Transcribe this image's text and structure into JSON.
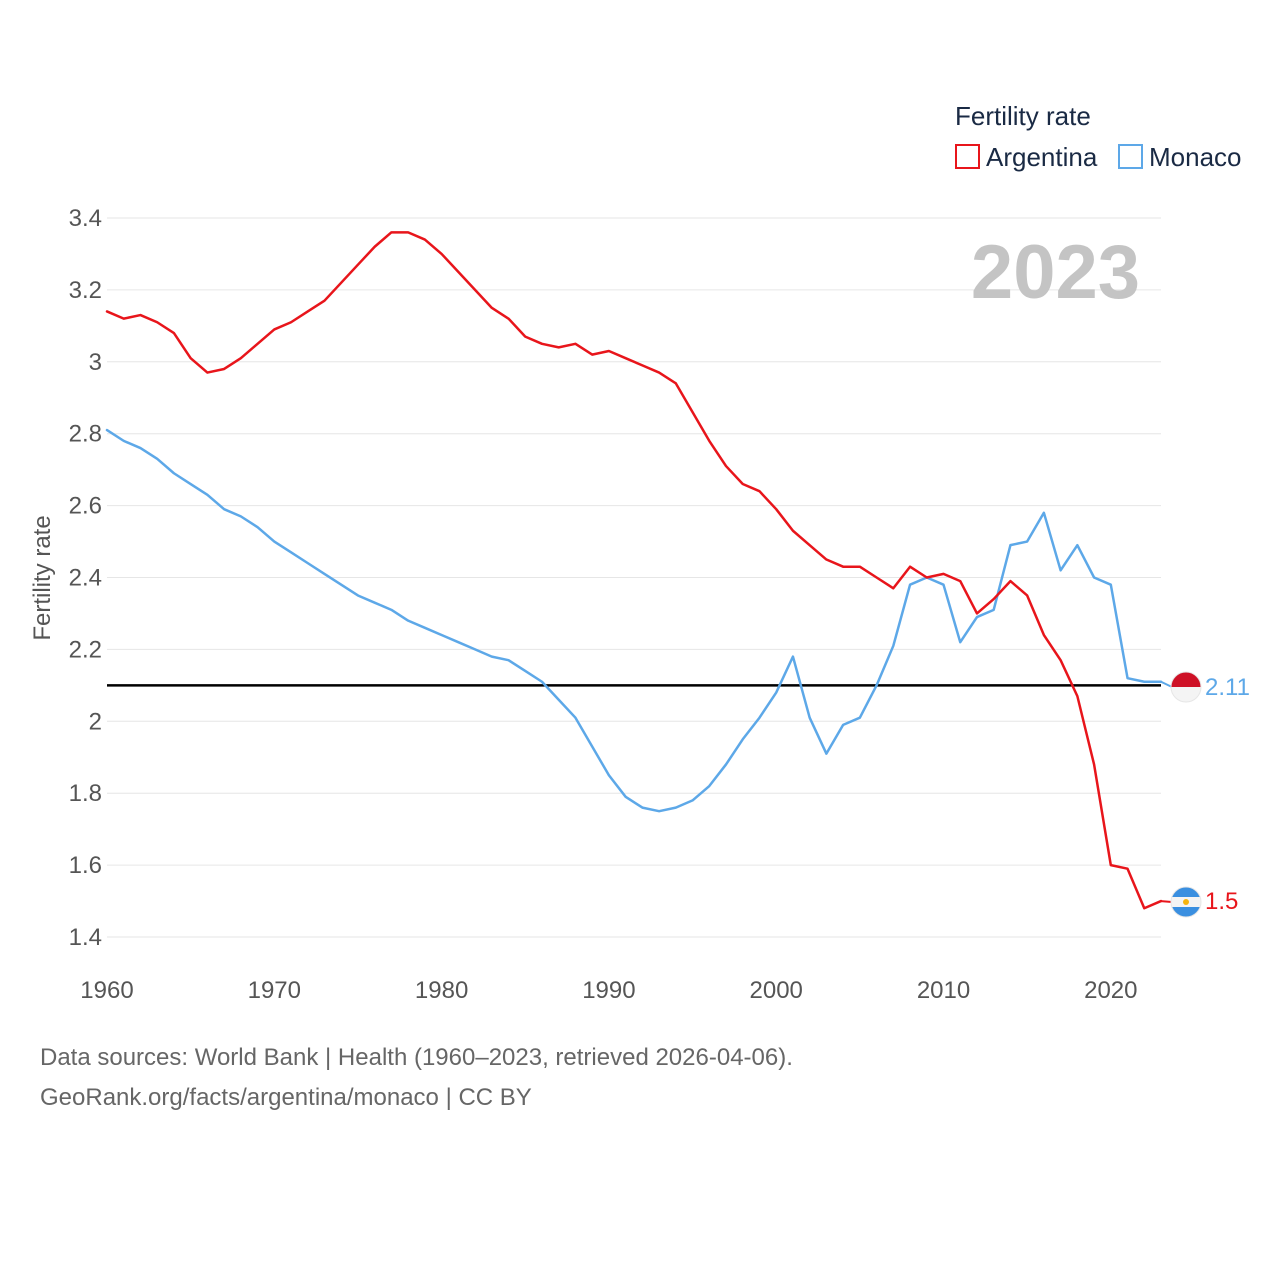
{
  "chart_data": {
    "type": "line",
    "title": "2023",
    "ylabel": "Fertility rate",
    "xlabel": "",
    "xlim": [
      1960,
      2023
    ],
    "ylim": [
      1.35,
      3.45
    ],
    "x_ticks": [
      1960,
      1970,
      1980,
      1990,
      2000,
      2010,
      2020
    ],
    "y_ticks": [
      1.4,
      1.6,
      1.8,
      2,
      2.2,
      2.4,
      2.6,
      2.8,
      3,
      3.2,
      3.4
    ],
    "legend_title": "Fertility rate",
    "legend_position": "top-right",
    "reference_line": {
      "value": 2.1
    },
    "x": [
      1960,
      1961,
      1962,
      1963,
      1964,
      1965,
      1966,
      1967,
      1968,
      1969,
      1970,
      1971,
      1972,
      1973,
      1974,
      1975,
      1976,
      1977,
      1978,
      1979,
      1980,
      1981,
      1982,
      1983,
      1984,
      1985,
      1986,
      1987,
      1988,
      1989,
      1990,
      1991,
      1992,
      1993,
      1994,
      1995,
      1996,
      1997,
      1998,
      1999,
      2000,
      2001,
      2002,
      2003,
      2004,
      2005,
      2006,
      2007,
      2008,
      2009,
      2010,
      2011,
      2012,
      2013,
      2014,
      2015,
      2016,
      2017,
      2018,
      2019,
      2020,
      2021,
      2022,
      2023
    ],
    "series": [
      {
        "name": "Argentina",
        "color": "#e8151b",
        "end_label": "1.5",
        "values": [
          3.14,
          3.12,
          3.13,
          3.11,
          3.08,
          3.01,
          2.97,
          2.98,
          3.01,
          3.05,
          3.09,
          3.11,
          3.14,
          3.17,
          3.22,
          3.27,
          3.32,
          3.36,
          3.36,
          3.34,
          3.3,
          3.25,
          3.2,
          3.15,
          3.12,
          3.07,
          3.05,
          3.04,
          3.05,
          3.02,
          3.03,
          3.01,
          2.99,
          2.97,
          2.94,
          2.86,
          2.78,
          2.71,
          2.66,
          2.64,
          2.59,
          2.53,
          2.49,
          2.45,
          2.43,
          2.43,
          2.4,
          2.37,
          2.43,
          2.4,
          2.41,
          2.39,
          2.3,
          2.34,
          2.39,
          2.35,
          2.24,
          2.17,
          2.07,
          1.88,
          1.6,
          1.59,
          1.48,
          1.5
        ]
      },
      {
        "name": "Monaco",
        "color": "#5da8e8",
        "end_label": "2.11",
        "values": [
          2.81,
          2.78,
          2.76,
          2.73,
          2.69,
          2.66,
          2.63,
          2.59,
          2.57,
          2.54,
          2.5,
          2.47,
          2.44,
          2.41,
          2.38,
          2.35,
          2.33,
          2.31,
          2.28,
          2.26,
          2.24,
          2.22,
          2.2,
          2.18,
          2.17,
          2.14,
          2.11,
          2.06,
          2.01,
          1.93,
          1.85,
          1.79,
          1.76,
          1.75,
          1.76,
          1.78,
          1.82,
          1.88,
          1.95,
          2.01,
          2.08,
          2.18,
          2.01,
          1.91,
          1.99,
          2.01,
          2.1,
          2.21,
          2.38,
          2.4,
          2.38,
          2.22,
          2.29,
          2.31,
          2.49,
          2.5,
          2.58,
          2.42,
          2.49,
          2.4,
          2.38,
          2.12,
          2.11,
          2.11
        ]
      }
    ]
  },
  "footer": {
    "line1": "Data sources: World Bank | Health (1960–2023, retrieved 2026-04-06).",
    "line2": "GeoRank.org/facts/argentina/monaco | CC BY"
  }
}
